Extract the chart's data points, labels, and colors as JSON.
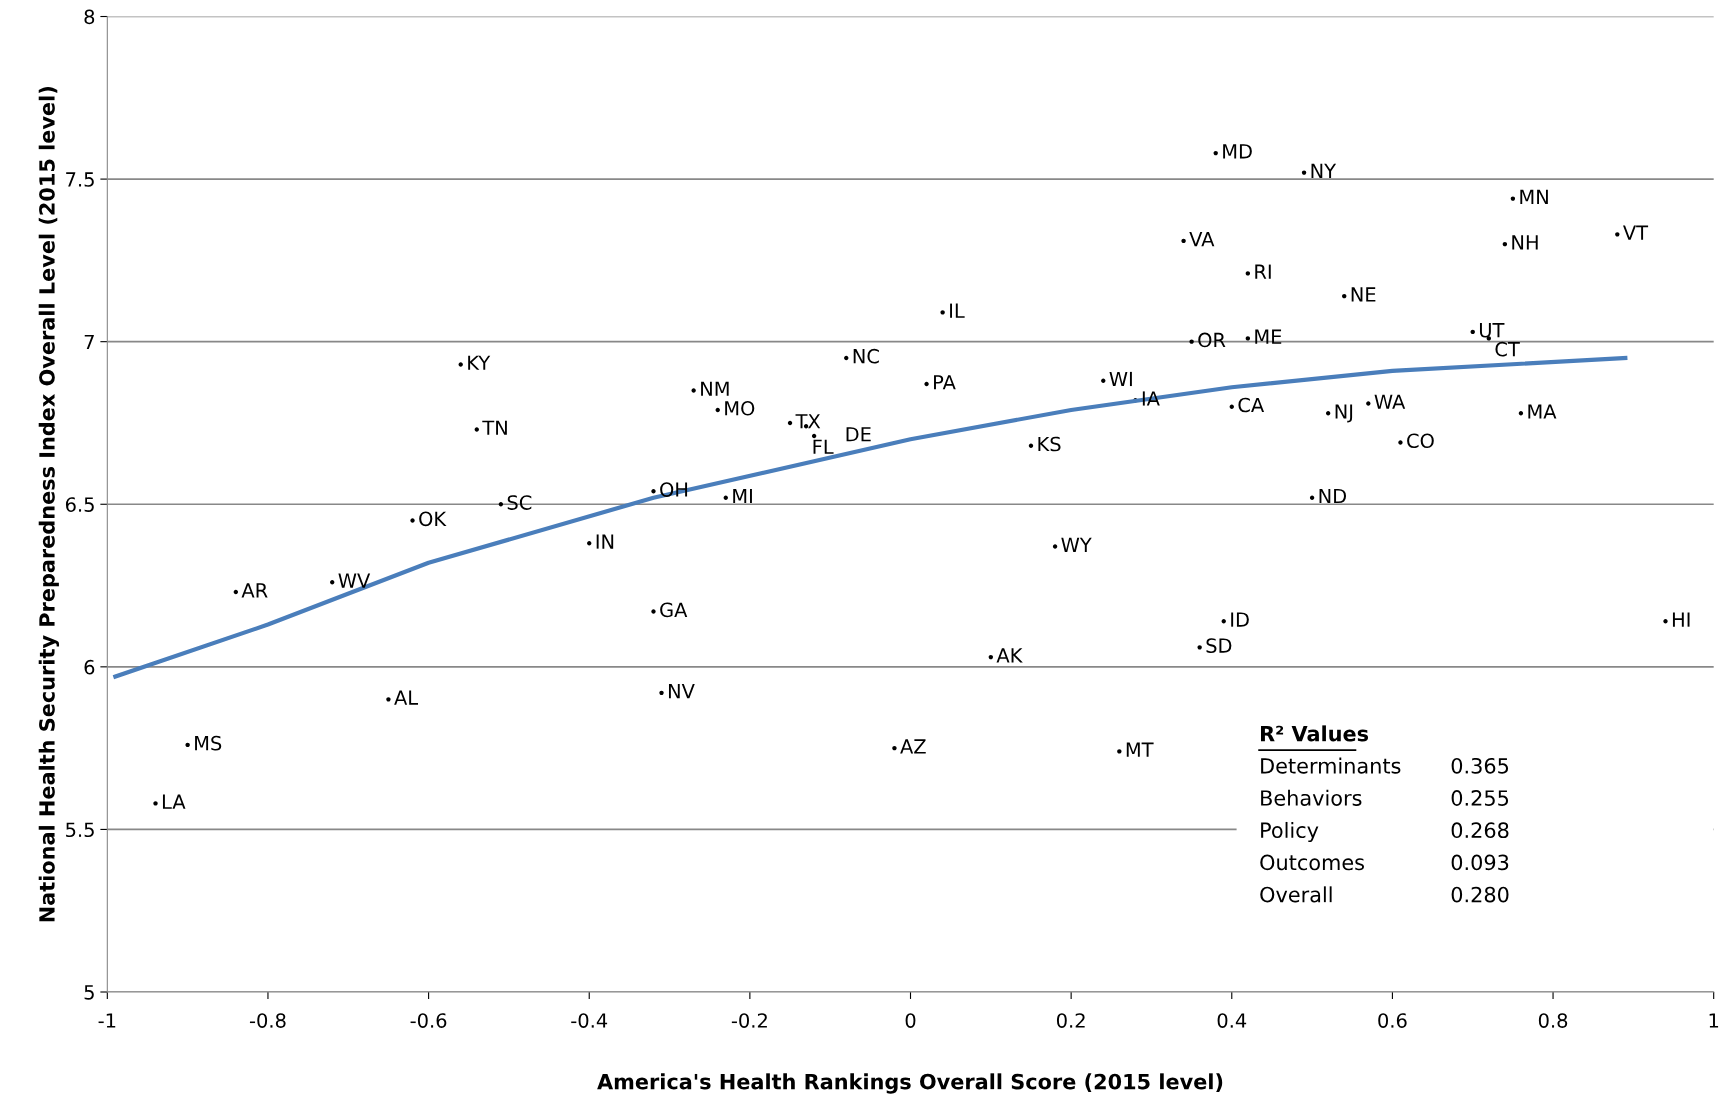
{
  "chart_data": {
    "type": "scatter",
    "xlabel": "America's Health Rankings Overall Score (2015 level)",
    "ylabel": "National Health Security Preparedness Index Overall Level (2015 level)",
    "xlim": [
      -1,
      1
    ],
    "xticks": [
      -1,
      -0.8,
      -0.6,
      -0.4,
      -0.2,
      0,
      0.2,
      0.4,
      0.6,
      0.8,
      1
    ],
    "ylim": [
      5,
      8
    ],
    "yticks": [
      5,
      5.5,
      6,
      6.5,
      7,
      7.5,
      8
    ],
    "grid": "y",
    "legend": false,
    "series": [
      {
        "marker": "circle",
        "color": "#000000",
        "x": [
          0.38,
          0.49,
          0.75,
          0.88,
          0.74,
          0.34,
          0.42,
          0.54,
          0.04,
          0.35,
          0.42,
          0.7,
          0.72,
          -0.08,
          -0.56,
          -0.27,
          -0.24,
          0.02,
          0.24,
          0.28,
          0.4,
          0.52,
          0.57,
          0.76,
          0.61,
          -0.15,
          -0.13,
          -0.12,
          -0.54,
          0.15,
          -0.32,
          -0.23,
          -0.51,
          -0.62,
          0.5,
          -0.4,
          0.18,
          -0.84,
          -0.72,
          -0.32,
          0.39,
          0.36,
          0.94,
          0.1,
          -0.65,
          -0.31,
          -0.9,
          -0.02,
          0.26,
          -0.94
        ],
        "values": [
          7.58,
          7.52,
          7.44,
          7.33,
          7.3,
          7.31,
          7.21,
          7.14,
          7.09,
          7.0,
          7.01,
          7.03,
          7.01,
          6.95,
          6.93,
          6.85,
          6.79,
          6.87,
          6.88,
          6.82,
          6.8,
          6.78,
          6.81,
          6.78,
          6.69,
          6.75,
          6.74,
          6.71,
          6.73,
          6.68,
          6.54,
          6.52,
          6.5,
          6.45,
          6.52,
          6.38,
          6.37,
          6.23,
          6.26,
          6.17,
          6.14,
          6.06,
          6.14,
          6.03,
          5.9,
          5.92,
          5.76,
          5.75,
          5.74,
          5.58
        ],
        "value_labels": [
          "MD",
          "NY",
          "MN",
          "VT",
          "NH",
          "VA",
          "RI",
          "NE",
          "IL",
          "OR",
          "ME",
          "UT",
          "CT",
          "NC",
          "KY",
          "NM",
          "MO",
          "PA",
          "WI",
          "IA",
          "CA",
          "NJ",
          "WA",
          "MA",
          "CO",
          "TX",
          "FL",
          "DE",
          "TN",
          "KS",
          "OH",
          "MI",
          "SC",
          "OK",
          "ND",
          "IN",
          "WY",
          "AR",
          "WV",
          "GA",
          "ID",
          "SD",
          "HI",
          "AK",
          "AL",
          "NV",
          "MS",
          "AZ",
          "MT",
          "LA"
        ]
      },
      {
        "type": "line",
        "color": "#4a7ebb",
        "x": [
          -0.99,
          -0.8,
          -0.6,
          -0.32,
          0,
          0.2,
          0.4,
          0.6,
          0.89
        ],
        "values": [
          5.97,
          6.13,
          6.32,
          6.52,
          6.7,
          6.79,
          6.86,
          6.91,
          6.95
        ]
      }
    ],
    "annotations": [
      "R² Values",
      "Determinants",
      "0.365",
      "Behaviors",
      "0.255",
      "Policy",
      "0.268",
      "Outcomes",
      "0.093",
      "Overall",
      "0.280"
    ]
  }
}
